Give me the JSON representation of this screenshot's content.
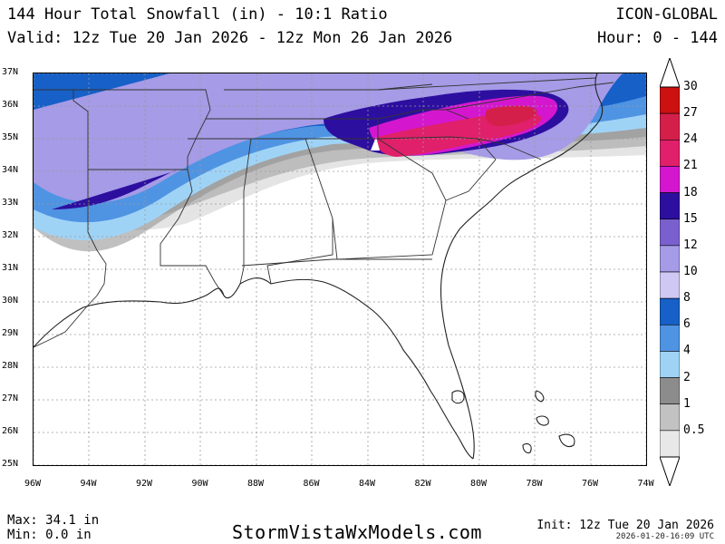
{
  "header": {
    "title": "144 Hour Total Snowfall (in) - 10:1 Ratio",
    "valid": "Valid: 12z Tue 20 Jan 2026 - 12z Mon 26 Jan 2026",
    "model": "ICON-GLOBAL",
    "hours": "Hour: 0 - 144"
  },
  "axes": {
    "lat_labels": [
      "37N",
      "36N",
      "35N",
      "34N",
      "33N",
      "32N",
      "31N",
      "30N",
      "29N",
      "28N",
      "27N",
      "26N",
      "25N"
    ],
    "lon_labels": [
      "96W",
      "94W",
      "92W",
      "90W",
      "88W",
      "86W",
      "84W",
      "82W",
      "80W",
      "78W",
      "76W",
      "74W"
    ]
  },
  "legend": {
    "levels": [
      {
        "label": "30",
        "color": "#cc1111"
      },
      {
        "label": "27",
        "color": "#d41f4a"
      },
      {
        "label": "24",
        "color": "#e0206a"
      },
      {
        "label": "21",
        "color": "#d417cf"
      },
      {
        "label": "18",
        "color": "#2d0fa0"
      },
      {
        "label": "15",
        "color": "#7a60cf"
      },
      {
        "label": "12",
        "color": "#a59be6"
      },
      {
        "label": "10",
        "color": "#d0c8f4"
      },
      {
        "label": "8",
        "color": "#1660c8"
      },
      {
        "label": "6",
        "color": "#4f93e3"
      },
      {
        "label": "4",
        "color": "#9fd3f6"
      },
      {
        "label": "2",
        "color": "#8c8c8c"
      },
      {
        "label": "1",
        "color": "#c2c2c2"
      },
      {
        "label": "0.5",
        "color": "#e8e8e8"
      }
    ]
  },
  "footer": {
    "max": "Max: 34.1 in",
    "min": "Min: 0.0 in",
    "brand": "StormVistaWxModels.com",
    "init": "Init: 12z Tue 20 Jan 2026",
    "stamp": "2026-01-20-16:09 UTC"
  }
}
